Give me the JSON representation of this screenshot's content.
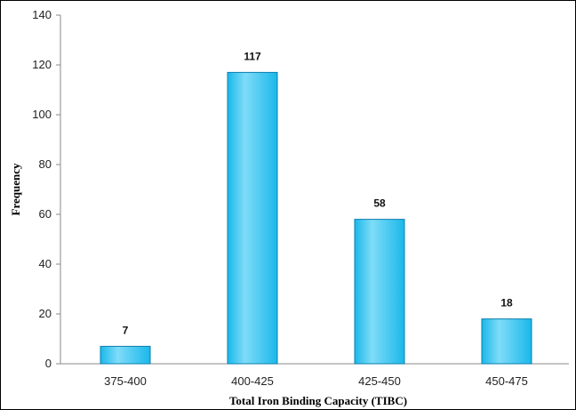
{
  "chart_data": {
    "type": "bar",
    "categories": [
      "375-400",
      "400-425",
      "425-450",
      "450-475"
    ],
    "values": [
      7,
      117,
      58,
      18
    ],
    "data_labels": [
      "7",
      "117",
      "58",
      "18"
    ],
    "xlabel": "Total Iron Binding Capacity (TIBC)",
    "ylabel": "Frequency",
    "ylim": [
      0,
      140
    ],
    "yticks": [
      0,
      20,
      40,
      60,
      80,
      100,
      120,
      140
    ],
    "ytick_labels": [
      "0",
      "20",
      "40",
      "60",
      "80",
      "100",
      "120",
      "140"
    ],
    "grid": false,
    "legend": "none",
    "colors": {
      "bar_fill": "#1ab8ea",
      "bar_edge": "#0b7fae",
      "bar_highlight": "#7fdcf8",
      "axis": "#888888"
    }
  }
}
